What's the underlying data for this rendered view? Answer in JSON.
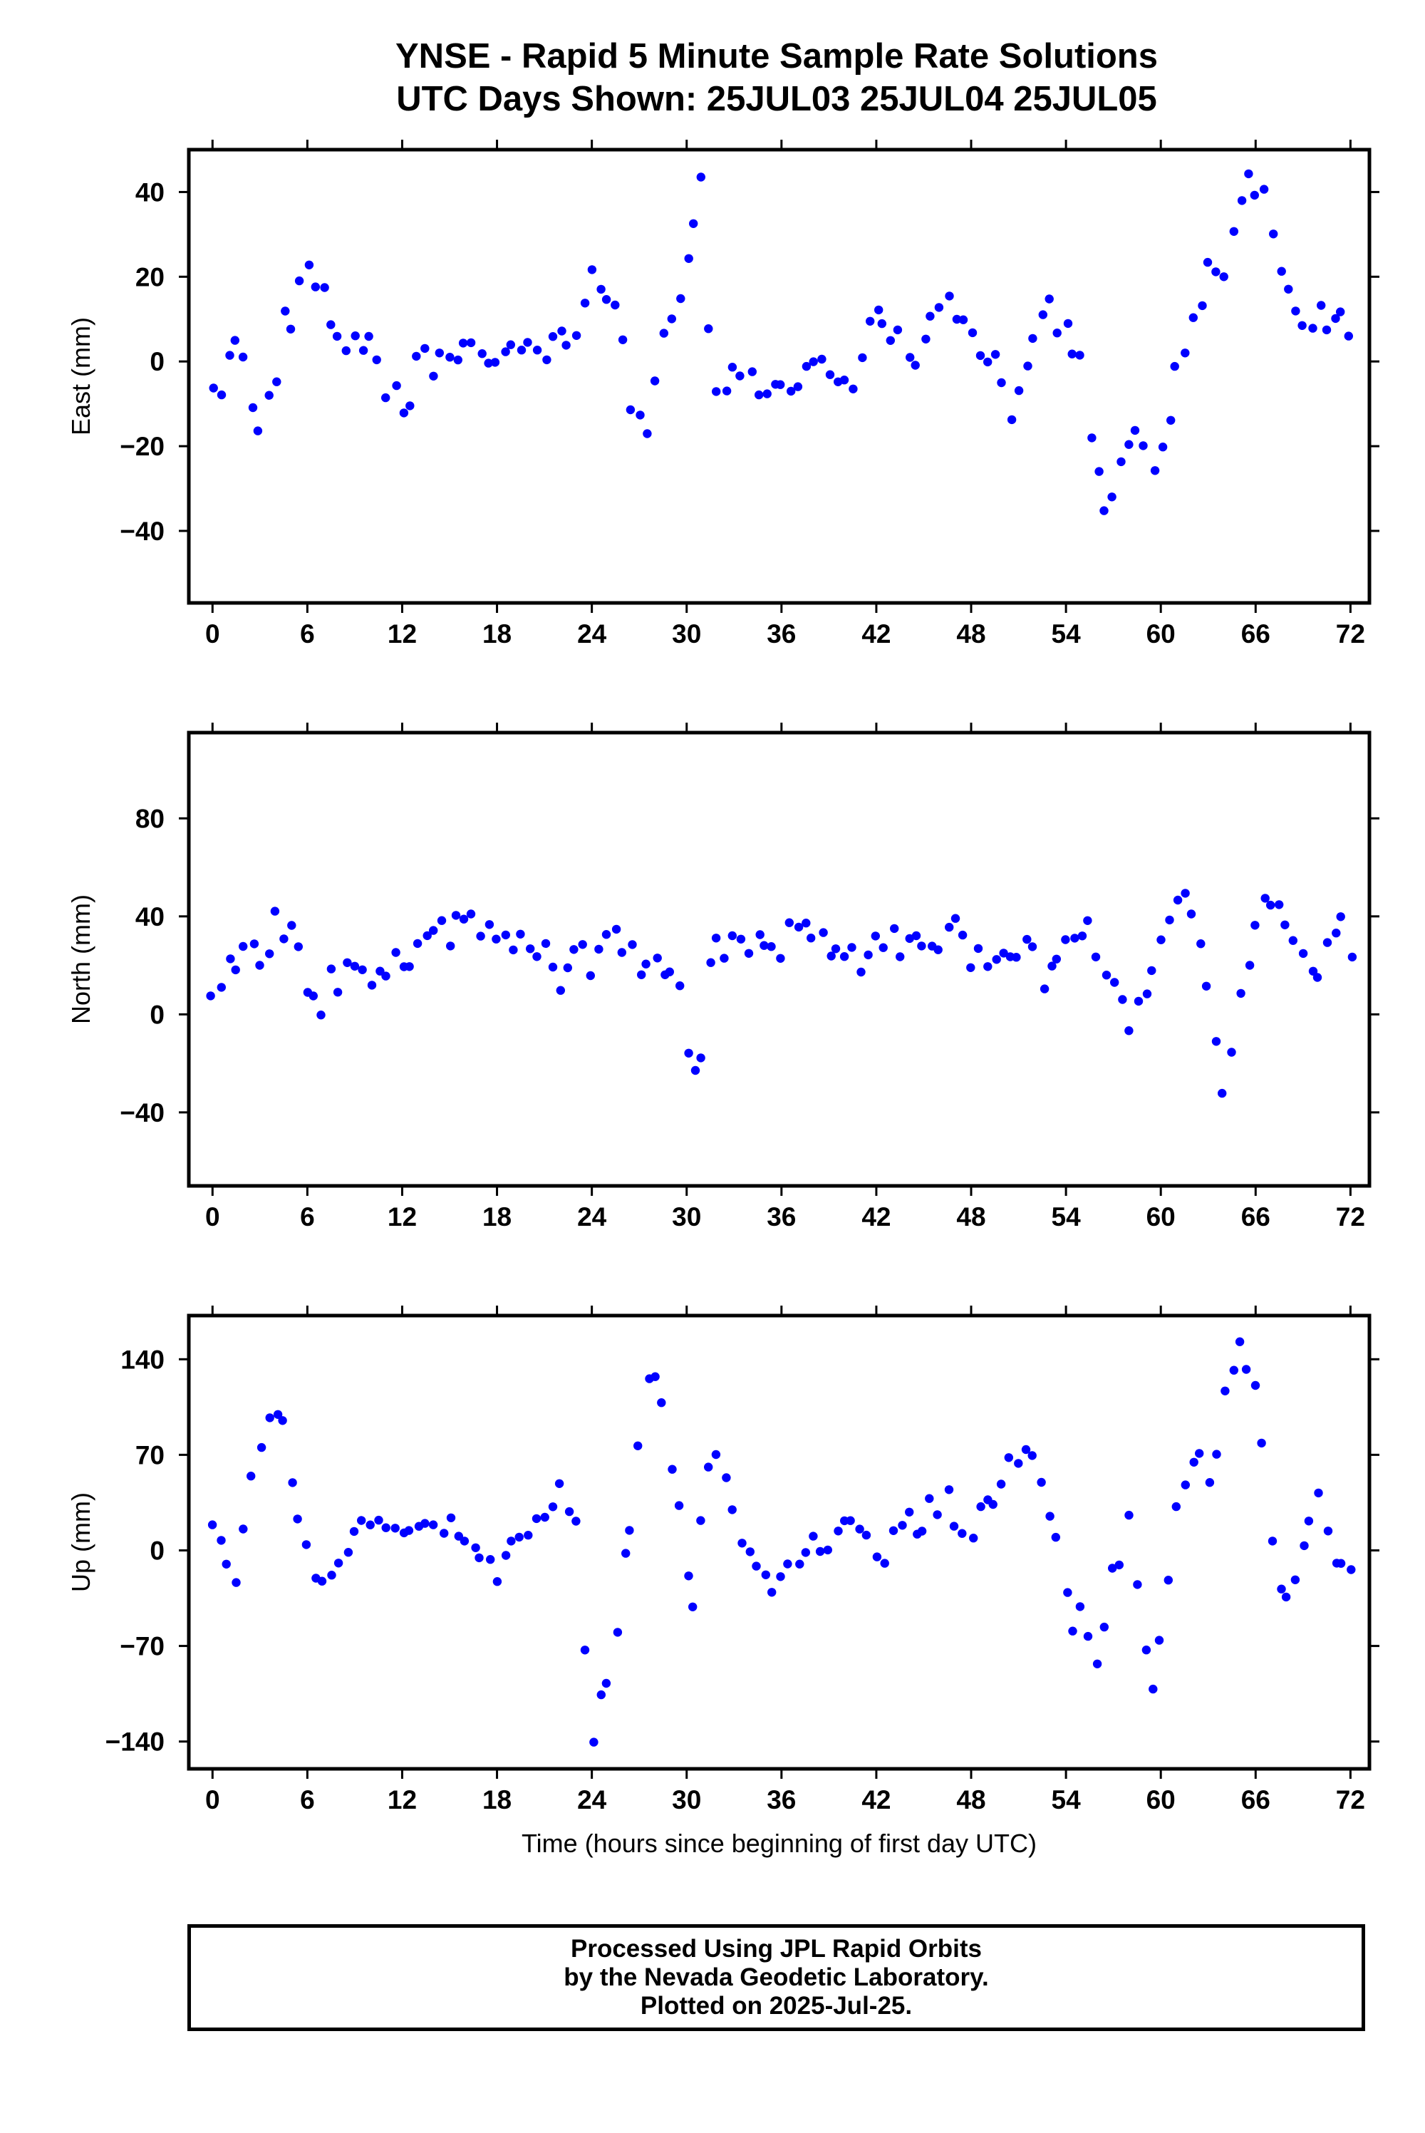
{
  "title": {
    "line1": "YNSE - Rapid 5 Minute Sample Rate Solutions",
    "line2": "UTC Days Shown:  25JUL03 25JUL04 25JUL05"
  },
  "footer": {
    "line1": "Processed Using JPL Rapid Orbits",
    "line2": "by the Nevada Geodetic Laboratory.",
    "line3": "Plotted on 2025-Jul-25."
  },
  "colors": {
    "points": "#0000ff",
    "frame": "#000000",
    "background": "#ffffff"
  },
  "chart_data": [
    {
      "type": "scatter",
      "ylabel": "East (mm)",
      "xlabel": "",
      "xlim": [
        -1.5,
        73.2
      ],
      "ylim": [
        -57,
        50
      ],
      "xticks": [
        0,
        6,
        12,
        18,
        24,
        30,
        36,
        42,
        48,
        54,
        60,
        66,
        72
      ],
      "yticks": [
        -40,
        -20,
        0,
        20,
        40
      ],
      "grid": false,
      "series": [
        {
          "color": "#0000ff",
          "anchors": [
            [
              0,
              -3
            ],
            [
              0.5,
              -8
            ],
            [
              1,
              2
            ],
            [
              1.5,
              9
            ],
            [
              2,
              0
            ],
            [
              2.7,
              -17
            ],
            [
              3.5,
              -11
            ],
            [
              4.5,
              7
            ],
            [
              5.5,
              17
            ],
            [
              6.2,
              24
            ],
            [
              7,
              15
            ],
            [
              8,
              3
            ],
            [
              9,
              6
            ],
            [
              10,
              2
            ],
            [
              11,
              -5
            ],
            [
              12,
              -13
            ],
            [
              13,
              -2
            ],
            [
              14,
              0
            ],
            [
              15,
              3
            ],
            [
              16,
              4
            ],
            [
              17,
              -2
            ],
            [
              18,
              2
            ],
            [
              19,
              3
            ],
            [
              20,
              0
            ],
            [
              21,
              4
            ],
            [
              22,
              5
            ],
            [
              23,
              8
            ],
            [
              24,
              26
            ],
            [
              25,
              18
            ],
            [
              26,
              0
            ],
            [
              26.5,
              -12
            ],
            [
              27.5,
              -15
            ],
            [
              28.5,
              5
            ],
            [
              29.5,
              16
            ],
            [
              30.2,
              25
            ],
            [
              30.9,
              40
            ],
            [
              31.4,
              3
            ],
            [
              32,
              -8
            ],
            [
              33,
              -5
            ],
            [
              34,
              -4
            ],
            [
              35,
              -7
            ],
            [
              36,
              -3
            ],
            [
              37,
              -4
            ],
            [
              38,
              1
            ],
            [
              39,
              -2
            ],
            [
              40,
              -7
            ],
            [
              40.8,
              -8
            ],
            [
              41.5,
              5
            ],
            [
              42.5,
              10
            ],
            [
              43.5,
              6
            ],
            [
              44.5,
              3
            ],
            [
              45.5,
              8
            ],
            [
              46.5,
              13
            ],
            [
              47.5,
              8
            ],
            [
              48.5,
              2
            ],
            [
              49.5,
              1
            ],
            [
              50.3,
              -12
            ],
            [
              51,
              -10
            ],
            [
              52,
              8
            ],
            [
              53,
              12
            ],
            [
              54,
              9
            ],
            [
              55,
              -3
            ],
            [
              55.8,
              -18
            ],
            [
              56.5,
              -42
            ],
            [
              57.3,
              -20
            ],
            [
              58.5,
              -15
            ],
            [
              59.5,
              -22
            ],
            [
              60.3,
              -18
            ],
            [
              61,
              -2
            ],
            [
              62,
              8
            ],
            [
              63,
              20
            ],
            [
              64,
              22
            ],
            [
              65,
              40
            ],
            [
              66,
              44
            ],
            [
              67,
              35
            ],
            [
              68,
              20
            ],
            [
              69,
              10
            ],
            [
              70,
              8
            ],
            [
              71,
              14
            ],
            [
              72,
              10
            ]
          ],
          "noise": 4.5
        }
      ]
    },
    {
      "type": "scatter",
      "ylabel": "North (mm)",
      "xlabel": "",
      "xlim": [
        -1.5,
        73.2
      ],
      "ylim": [
        -70,
        115
      ],
      "xticks": [
        0,
        6,
        12,
        18,
        24,
        30,
        36,
        42,
        48,
        54,
        60,
        66,
        72
      ],
      "yticks": [
        -40,
        0,
        40,
        80
      ],
      "grid": false,
      "series": [
        {
          "color": "#0000ff",
          "anchors": [
            [
              0,
              3
            ],
            [
              1,
              17
            ],
            [
              2,
              27
            ],
            [
              3,
              22
            ],
            [
              4,
              37
            ],
            [
              5,
              30
            ],
            [
              6,
              15
            ],
            [
              6.5,
              3
            ],
            [
              7,
              8
            ],
            [
              8,
              15
            ],
            [
              9,
              18
            ],
            [
              10,
              18
            ],
            [
              11,
              20
            ],
            [
              12,
              20
            ],
            [
              13,
              27
            ],
            [
              14,
              32
            ],
            [
              15,
              33
            ],
            [
              16,
              37
            ],
            [
              17,
              35
            ],
            [
              18,
              33
            ],
            [
              19,
              31
            ],
            [
              20,
              32
            ],
            [
              21,
              28
            ],
            [
              22,
              15
            ],
            [
              23,
              30
            ],
            [
              24,
              20
            ],
            [
              25,
              35
            ],
            [
              26,
              27
            ],
            [
              27,
              20
            ],
            [
              28,
              25
            ],
            [
              29,
              20
            ],
            [
              29.5,
              15
            ],
            [
              30,
              -5
            ],
            [
              30.7,
              -35
            ],
            [
              31.5,
              24
            ],
            [
              32.5,
              30
            ],
            [
              33.5,
              33
            ],
            [
              35,
              27
            ],
            [
              37,
              32
            ],
            [
              39,
              28
            ],
            [
              40,
              20
            ],
            [
              41,
              22
            ],
            [
              42,
              30
            ],
            [
              43,
              28
            ],
            [
              44,
              30
            ],
            [
              45,
              32
            ],
            [
              46,
              27
            ],
            [
              47,
              35
            ],
            [
              48,
              20
            ],
            [
              49,
              20
            ],
            [
              50,
              25
            ],
            [
              51,
              22
            ],
            [
              51.8,
              35
            ],
            [
              52.5,
              17
            ],
            [
              53.5,
              18
            ],
            [
              54.5,
              35
            ],
            [
              55.5,
              35
            ],
            [
              56.5,
              22
            ],
            [
              57.2,
              8
            ],
            [
              58.2,
              -2
            ],
            [
              59.2,
              5
            ],
            [
              60,
              30
            ],
            [
              61,
              40
            ],
            [
              62,
              48
            ],
            [
              63,
              12
            ],
            [
              63.5,
              -10
            ],
            [
              64,
              -40
            ],
            [
              64.8,
              -5
            ],
            [
              65.5,
              15
            ],
            [
              66.2,
              42
            ],
            [
              67,
              45
            ],
            [
              68,
              40
            ],
            [
              69,
              20
            ],
            [
              70,
              15
            ],
            [
              71,
              38
            ],
            [
              72,
              25
            ]
          ],
          "noise": 7
        }
      ]
    },
    {
      "type": "scatter",
      "ylabel": "Up (mm)",
      "xlabel": "Time (hours since beginning of first day UTC)",
      "xlim": [
        -1.5,
        73.2
      ],
      "ylim": [
        -160,
        172
      ],
      "xticks": [
        0,
        6,
        12,
        18,
        24,
        30,
        36,
        42,
        48,
        54,
        60,
        66,
        72
      ],
      "yticks": [
        -140,
        -70,
        0,
        70,
        140
      ],
      "grid": false,
      "series": [
        {
          "color": "#0000ff",
          "anchors": [
            [
              0,
              20
            ],
            [
              1,
              -10
            ],
            [
              1.5,
              -20
            ],
            [
              2.5,
              50
            ],
            [
              3.5,
              100
            ],
            [
              4.5,
              90
            ],
            [
              5.5,
              5
            ],
            [
              6.5,
              -10
            ],
            [
              7.5,
              -20
            ],
            [
              8.5,
              0
            ],
            [
              9.5,
              20
            ],
            [
              10.5,
              30
            ],
            [
              11.5,
              10
            ],
            [
              12.5,
              20
            ],
            [
              14,
              25
            ],
            [
              15,
              15
            ],
            [
              16,
              0
            ],
            [
              17,
              -10
            ],
            [
              18,
              -20
            ],
            [
              19,
              5
            ],
            [
              20,
              15
            ],
            [
              21,
              30
            ],
            [
              22,
              50
            ],
            [
              23,
              20
            ],
            [
              24,
              -140
            ],
            [
              25,
              -100
            ],
            [
              25.5,
              -80
            ],
            [
              26,
              -20
            ],
            [
              26.5,
              30
            ],
            [
              27.2,
              100
            ],
            [
              27.9,
              140
            ],
            [
              28.5,
              100
            ],
            [
              29.2,
              60
            ],
            [
              30,
              -20
            ],
            [
              30.5,
              -35
            ],
            [
              31,
              40
            ],
            [
              31.8,
              75
            ],
            [
              32.5,
              50
            ],
            [
              33.5,
              15
            ],
            [
              34.5,
              -10
            ],
            [
              35.5,
              -35
            ],
            [
              36.5,
              -15
            ],
            [
              37.5,
              0
            ],
            [
              38.5,
              10
            ],
            [
              39.5,
              5
            ],
            [
              40.5,
              30
            ],
            [
              41.5,
              0
            ],
            [
              42.5,
              -5
            ],
            [
              43.5,
              15
            ],
            [
              44.5,
              20
            ],
            [
              45.5,
              30
            ],
            [
              46.5,
              45
            ],
            [
              47.5,
              0
            ],
            [
              48.5,
              30
            ],
            [
              49.5,
              40
            ],
            [
              50.5,
              65
            ],
            [
              51.5,
              70
            ],
            [
              52.5,
              50
            ],
            [
              53.5,
              0
            ],
            [
              54.3,
              -55
            ],
            [
              55,
              -45
            ],
            [
              56,
              -80
            ],
            [
              57,
              -20
            ],
            [
              58,
              20
            ],
            [
              58.8,
              -40
            ],
            [
              59.5,
              -110
            ],
            [
              60.2,
              -40
            ],
            [
              61.2,
              40
            ],
            [
              62.2,
              70
            ],
            [
              63.2,
              50
            ],
            [
              64.2,
              120
            ],
            [
              65,
              150
            ],
            [
              66,
              120
            ],
            [
              66.6,
              40
            ],
            [
              67.3,
              -20
            ],
            [
              68.3,
              -30
            ],
            [
              69.3,
              15
            ],
            [
              70.3,
              40
            ],
            [
              71,
              -5
            ],
            [
              72,
              -20
            ]
          ],
          "noise": 11
        }
      ]
    }
  ]
}
